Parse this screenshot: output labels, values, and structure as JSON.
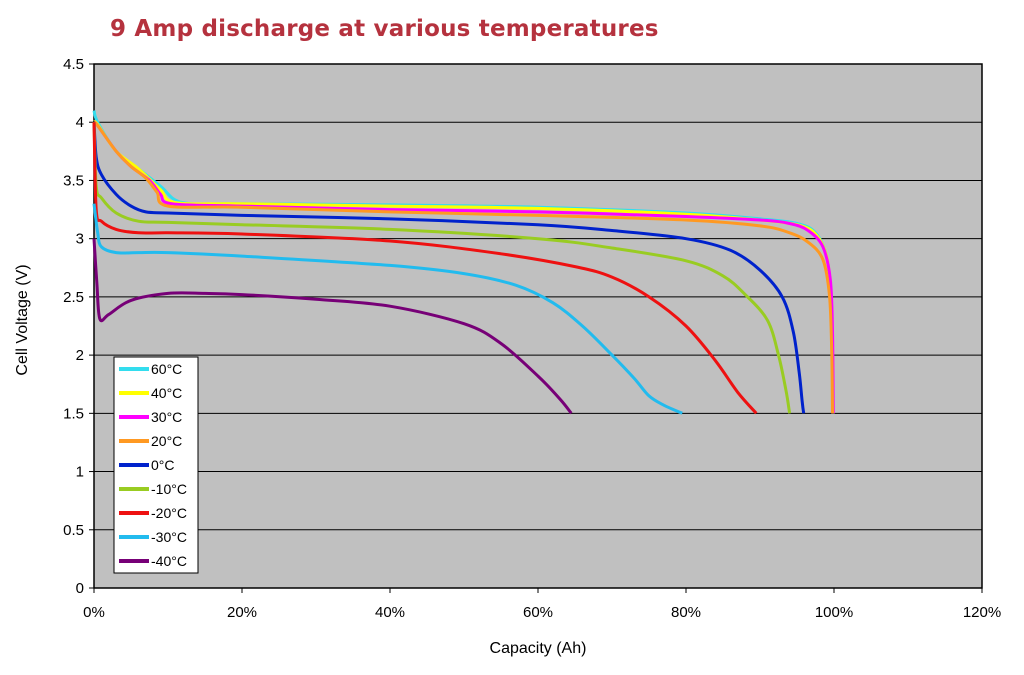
{
  "chart_data": {
    "type": "line",
    "title": "9 Amp discharge at various temperatures",
    "xlabel": "Capacity (Ah)",
    "ylabel": "Cell Voltage (V)",
    "xlim": [
      0,
      120
    ],
    "ylim": [
      0,
      4.5
    ],
    "x_ticks": [
      "0%",
      "20%",
      "40%",
      "60%",
      "80%",
      "100%",
      "120%"
    ],
    "y_ticks": [
      "0",
      "0.5",
      "1",
      "1.5",
      "2",
      "2.5",
      "3",
      "3.5",
      "4",
      "4.5"
    ],
    "x_tick_values": [
      0,
      20,
      40,
      60,
      80,
      100,
      120
    ],
    "y_tick_values": [
      0,
      0.5,
      1,
      1.5,
      2,
      2.5,
      3,
      3.5,
      4,
      4.5
    ],
    "grid": true,
    "plot_background": "#c0c0c0",
    "legend_position": "bottom-left",
    "series": [
      {
        "name": "60°C",
        "color": "#33ddee",
        "points": [
          [
            0,
            4.1
          ],
          [
            0.5,
            4.0
          ],
          [
            3,
            3.75
          ],
          [
            6,
            3.6
          ],
          [
            9,
            3.45
          ],
          [
            12,
            3.31
          ],
          [
            20,
            3.3
          ],
          [
            40,
            3.29
          ],
          [
            60,
            3.27
          ],
          [
            80,
            3.22
          ],
          [
            90,
            3.17
          ],
          [
            95,
            3.13
          ],
          [
            97.5,
            3.05
          ],
          [
            99,
            2.85
          ],
          [
            99.6,
            2.5
          ],
          [
            99.8,
            2.0
          ],
          [
            99.9,
            1.5
          ]
        ]
      },
      {
        "name": "40°C",
        "color": "#ffff00",
        "points": [
          [
            0,
            4.0
          ],
          [
            0.5,
            3.98
          ],
          [
            3,
            3.75
          ],
          [
            6,
            3.6
          ],
          [
            9,
            3.42
          ],
          [
            11,
            3.31
          ],
          [
            20,
            3.3
          ],
          [
            40,
            3.28
          ],
          [
            60,
            3.26
          ],
          [
            80,
            3.21
          ],
          [
            90,
            3.16
          ],
          [
            95,
            3.12
          ],
          [
            97.5,
            3.04
          ],
          [
            99,
            2.85
          ],
          [
            99.6,
            2.5
          ],
          [
            99.8,
            2.0
          ],
          [
            99.9,
            1.5
          ]
        ]
      },
      {
        "name": "30°C",
        "color": "#ff00ff",
        "points": [
          [
            0,
            4.0
          ],
          [
            0.5,
            3.97
          ],
          [
            3,
            3.75
          ],
          [
            5,
            3.62
          ],
          [
            7.5,
            3.5
          ],
          [
            9,
            3.38
          ],
          [
            10.5,
            3.3
          ],
          [
            20,
            3.28
          ],
          [
            40,
            3.25
          ],
          [
            60,
            3.23
          ],
          [
            80,
            3.19
          ],
          [
            90,
            3.16
          ],
          [
            94,
            3.13
          ],
          [
            96.5,
            3.07
          ],
          [
            98.5,
            2.93
          ],
          [
            99.5,
            2.65
          ],
          [
            99.8,
            2.2
          ],
          [
            99.9,
            1.5
          ]
        ]
      },
      {
        "name": "20°C",
        "color": "#ff9922",
        "points": [
          [
            0,
            4.0
          ],
          [
            0.5,
            3.97
          ],
          [
            3,
            3.75
          ],
          [
            5,
            3.62
          ],
          [
            7,
            3.52
          ],
          [
            8.5,
            3.4
          ],
          [
            10,
            3.28
          ],
          [
            20,
            3.27
          ],
          [
            40,
            3.23
          ],
          [
            60,
            3.2
          ],
          [
            80,
            3.16
          ],
          [
            90,
            3.11
          ],
          [
            94,
            3.05
          ],
          [
            96.5,
            2.97
          ],
          [
            98.5,
            2.82
          ],
          [
            99.4,
            2.5
          ],
          [
            99.7,
            2.0
          ],
          [
            99.8,
            1.5
          ]
        ]
      },
      {
        "name": "0°C",
        "color": "#0022cc",
        "points": [
          [
            0,
            4.0
          ],
          [
            0.3,
            3.7
          ],
          [
            1,
            3.55
          ],
          [
            3,
            3.38
          ],
          [
            5,
            3.28
          ],
          [
            7,
            3.23
          ],
          [
            10,
            3.22
          ],
          [
            20,
            3.2
          ],
          [
            40,
            3.17
          ],
          [
            60,
            3.12
          ],
          [
            70,
            3.07
          ],
          [
            80,
            3.0
          ],
          [
            86,
            2.9
          ],
          [
            90,
            2.73
          ],
          [
            93,
            2.5
          ],
          [
            94.5,
            2.2
          ],
          [
            95.3,
            1.85
          ],
          [
            95.7,
            1.6
          ],
          [
            95.9,
            1.5
          ]
        ]
      },
      {
        "name": "-10°C",
        "color": "#99cc22",
        "points": [
          [
            0,
            4.0
          ],
          [
            0.3,
            3.45
          ],
          [
            1,
            3.35
          ],
          [
            3,
            3.22
          ],
          [
            6,
            3.15
          ],
          [
            10,
            3.14
          ],
          [
            20,
            3.12
          ],
          [
            40,
            3.08
          ],
          [
            60,
            3.0
          ],
          [
            70,
            2.92
          ],
          [
            80,
            2.81
          ],
          [
            85,
            2.68
          ],
          [
            88,
            2.52
          ],
          [
            91,
            2.3
          ],
          [
            92.5,
            2.0
          ],
          [
            93.5,
            1.7
          ],
          [
            94,
            1.5
          ]
        ]
      },
      {
        "name": "-20°C",
        "color": "#ee1111",
        "points": [
          [
            0,
            4.0
          ],
          [
            0.3,
            3.25
          ],
          [
            1,
            3.15
          ],
          [
            3,
            3.08
          ],
          [
            6,
            3.05
          ],
          [
            10,
            3.05
          ],
          [
            20,
            3.04
          ],
          [
            40,
            2.98
          ],
          [
            55,
            2.87
          ],
          [
            65,
            2.76
          ],
          [
            70,
            2.67
          ],
          [
            75,
            2.5
          ],
          [
            80,
            2.25
          ],
          [
            84,
            1.95
          ],
          [
            87,
            1.68
          ],
          [
            89.5,
            1.5
          ]
        ]
      },
      {
        "name": "-30°C",
        "color": "#22bbee",
        "points": [
          [
            0,
            3.3
          ],
          [
            0.5,
            3.05
          ],
          [
            1,
            2.93
          ],
          [
            3,
            2.88
          ],
          [
            6,
            2.88
          ],
          [
            10,
            2.88
          ],
          [
            20,
            2.85
          ],
          [
            40,
            2.77
          ],
          [
            50,
            2.7
          ],
          [
            57,
            2.6
          ],
          [
            62,
            2.45
          ],
          [
            66,
            2.25
          ],
          [
            70,
            2.0
          ],
          [
            73,
            1.8
          ],
          [
            75,
            1.65
          ],
          [
            77,
            1.57
          ],
          [
            79.5,
            1.5
          ]
        ]
      },
      {
        "name": "-40°C",
        "color": "#770077",
        "points": [
          [
            0,
            3.0
          ],
          [
            0.4,
            2.6
          ],
          [
            0.8,
            2.31
          ],
          [
            2,
            2.35
          ],
          [
            5,
            2.47
          ],
          [
            10,
            2.53
          ],
          [
            15,
            2.53
          ],
          [
            20,
            2.52
          ],
          [
            30,
            2.48
          ],
          [
            40,
            2.42
          ],
          [
            50,
            2.27
          ],
          [
            55,
            2.1
          ],
          [
            60,
            1.82
          ],
          [
            63,
            1.62
          ],
          [
            64.5,
            1.5
          ]
        ]
      }
    ]
  }
}
